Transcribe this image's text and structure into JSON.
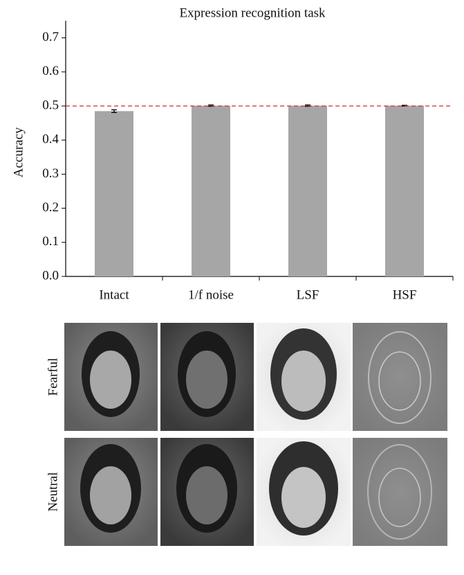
{
  "chart_data": {
    "type": "bar",
    "title": "Expression recognition task",
    "y_label": "Accuracy",
    "categories": [
      "Intact",
      "1/f noise",
      "LSF",
      "HSF"
    ],
    "values": [
      0.485,
      0.501,
      0.501,
      0.501
    ],
    "errors": [
      0.004,
      0.002,
      0.002,
      0.001
    ],
    "color": "#a6a6a6",
    "error_color": "#000000",
    "reference_line": 0.5,
    "reference_color": "#d62728",
    "ylim": [
      0,
      0.75
    ],
    "yticks": [
      {
        "value": 0,
        "label": "0.0"
      },
      0.1,
      0.2,
      0.3,
      0.4,
      0.5,
      0.6,
      0.7
    ],
    "grid": false
  },
  "images": {
    "rows": [
      "Fearful",
      "Neutral"
    ]
  }
}
